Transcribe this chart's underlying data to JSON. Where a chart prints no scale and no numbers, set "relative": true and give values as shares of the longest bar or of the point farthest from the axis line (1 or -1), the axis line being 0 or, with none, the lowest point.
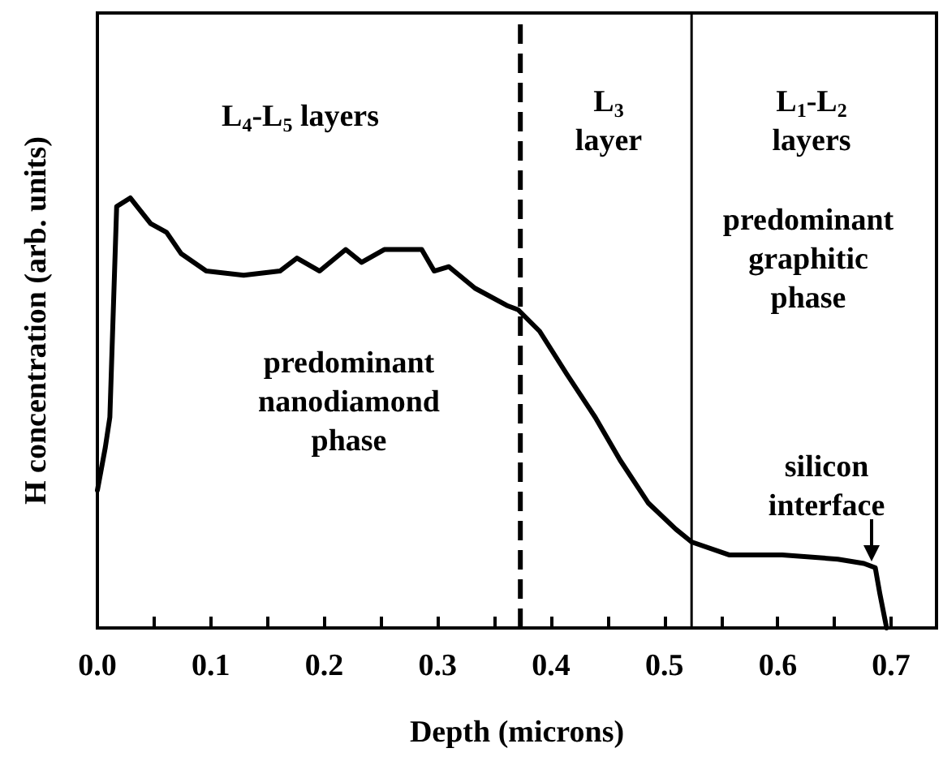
{
  "chart_data": {
    "type": "line",
    "relative": true,
    "xlabel": "Depth (microns)",
    "ylabel": "H concentration (arb. units)",
    "xlim": [
      0,
      0.74
    ],
    "xticks": [
      {
        "value": 0,
        "label": "0.0"
      },
      {
        "value": 0.05,
        "label": null
      },
      {
        "value": 0.1,
        "label": "0.1"
      },
      {
        "value": 0.15,
        "label": null
      },
      {
        "value": 0.2,
        "label": "0.2"
      },
      {
        "value": 0.25,
        "label": null
      },
      {
        "value": 0.3,
        "label": "0.3"
      },
      {
        "value": 0.35,
        "label": null
      },
      {
        "value": 0.4,
        "label": "0.4"
      },
      {
        "value": 0.45,
        "label": null
      },
      {
        "value": 0.5,
        "label": "0.5"
      },
      {
        "value": 0.55,
        "label": null
      },
      {
        "value": 0.6,
        "label": "0.6"
      },
      {
        "value": 0.65,
        "label": null
      },
      {
        "value": 0.7,
        "label": "0.7"
      }
    ],
    "series": [
      {
        "color": "#000000",
        "x": [
          0,
          0.007,
          0.011,
          0.017,
          0.029,
          0.047,
          0.061,
          0.074,
          0.096,
          0.129,
          0.161,
          0.176,
          0.196,
          0.219,
          0.233,
          0.253,
          0.286,
          0.297,
          0.31,
          0.333,
          0.361,
          0.371,
          0.39,
          0.414,
          0.439,
          0.461,
          0.486,
          0.51,
          0.524,
          0.557,
          0.604,
          0.653,
          0.676,
          0.686,
          0.69,
          0.696
        ],
        "values": [
          0.32,
          0.42,
          0.49,
          0.98,
          1.0,
          0.94,
          0.92,
          0.87,
          0.83,
          0.82,
          0.83,
          0.86,
          0.83,
          0.88,
          0.85,
          0.88,
          0.88,
          0.83,
          0.84,
          0.79,
          0.75,
          0.74,
          0.69,
          0.59,
          0.49,
          0.39,
          0.29,
          0.23,
          0.2,
          0.17,
          0.17,
          0.16,
          0.15,
          0.14,
          0.08,
          0.0
        ]
      }
    ],
    "ref_lines": [
      {
        "axis": "x",
        "value": 0.373,
        "line_style": "dashed",
        "color": "#000000"
      },
      {
        "axis": "x",
        "value": 0.524,
        "line_style": "solid",
        "color": "#000000"
      }
    ],
    "annotations": [
      "L$_{4}$-L$_{5}$ layers",
      "L$_{3}$\nlayer",
      "L$_{1}$-L$_{2}$\nlayers",
      "predominant\nnanodiamond\nphase",
      "predominant\ngraphitic\nphase",
      {
        "text": "silicon\ninterface",
        "x": 0.686,
        "y": 0.14
      }
    ],
    "grid": false
  }
}
